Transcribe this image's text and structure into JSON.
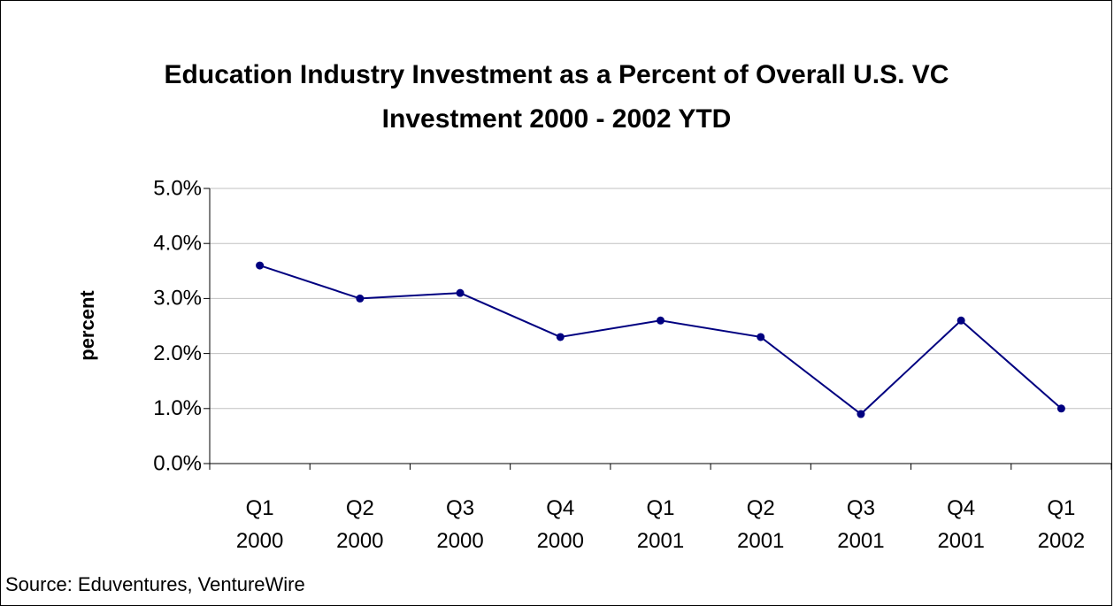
{
  "chart_data": {
    "type": "line",
    "title": "Education Industry Investment as a Percent of Overall U.S. VC Investment 2000 - 2002 YTD",
    "y_label": "percent",
    "source": "Source: Eduventures, VentureWire",
    "categories": [
      "Q1 2000",
      "Q2 2000",
      "Q3 2000",
      "Q4 2000",
      "Q1 2001",
      "Q2 2001",
      "Q3 2001",
      "Q4 2001",
      "Q1 2002"
    ],
    "series": [
      {
        "color": "#000080",
        "values": [
          3.6,
          3.0,
          3.1,
          2.3,
          2.6,
          2.3,
          0.9,
          2.6,
          1.0
        ]
      }
    ],
    "ylim": [
      0,
      5
    ],
    "yticks": [
      {
        "value": 0,
        "label": "0.0%"
      },
      {
        "value": 1,
        "label": "1.0%"
      },
      {
        "value": 2,
        "label": "2.0%"
      },
      {
        "value": 3,
        "label": "3.0%"
      },
      {
        "value": 4,
        "label": "4.0%"
      },
      {
        "value": 5,
        "label": "5.0%"
      }
    ],
    "grid": true
  }
}
